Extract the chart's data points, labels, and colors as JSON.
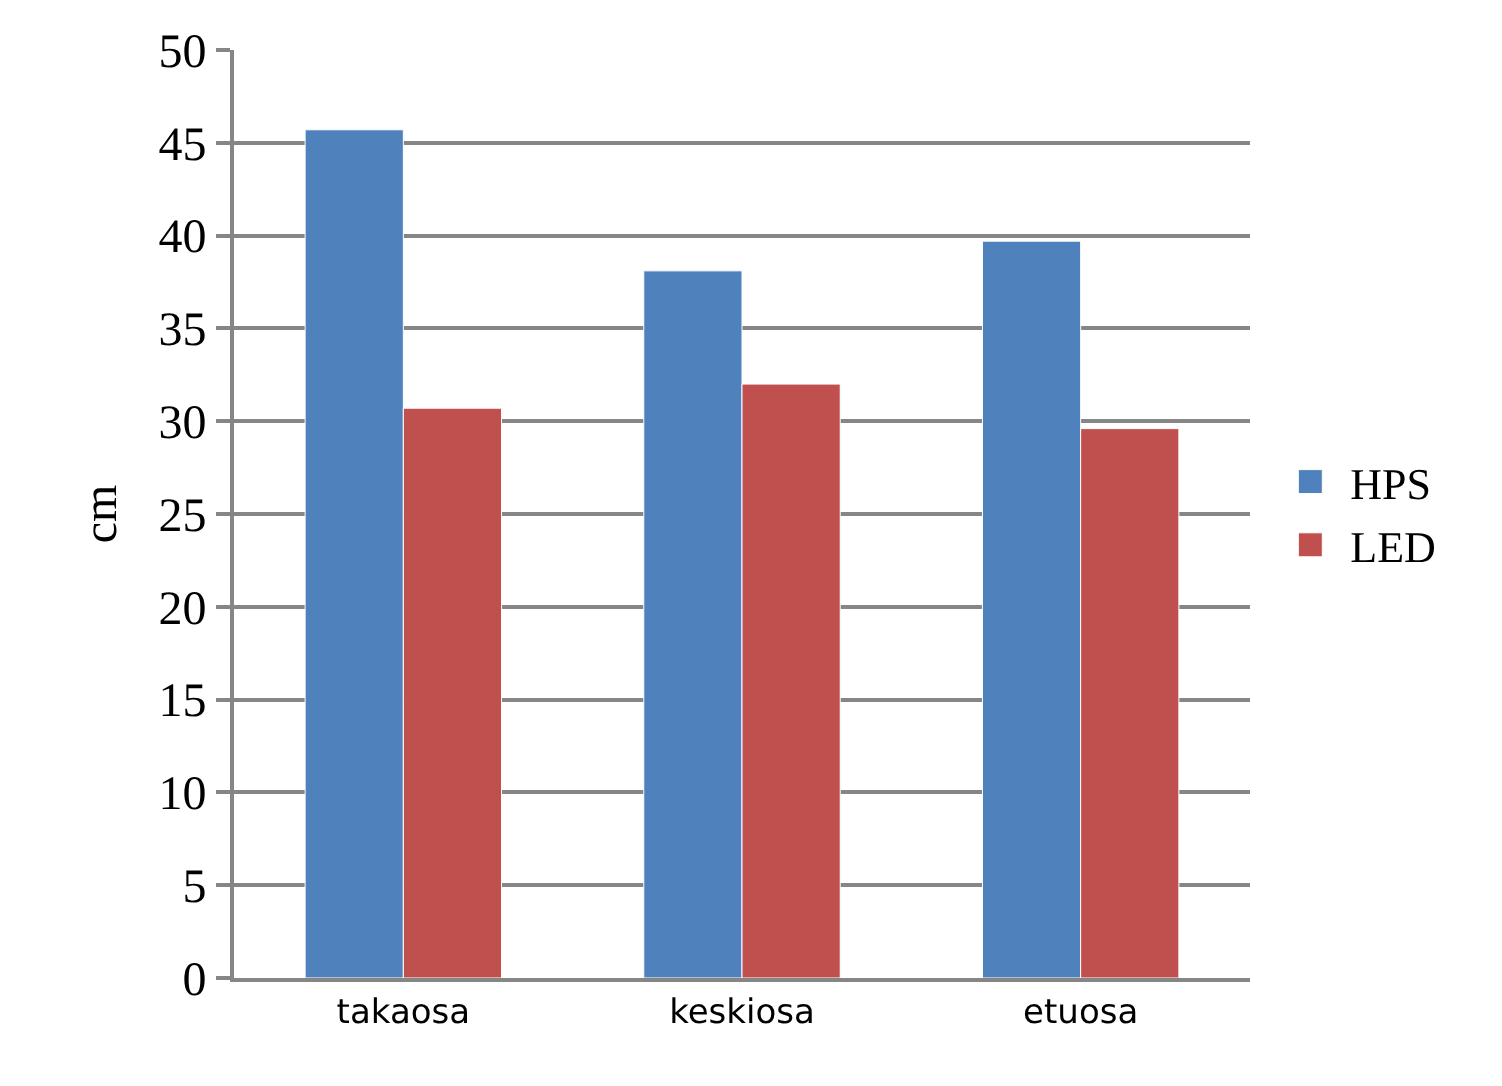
{
  "chart_data": {
    "type": "bar",
    "ylabel": "cm",
    "categories": [
      "takaosa",
      "keskiosa",
      "etuosa"
    ],
    "series": [
      {
        "name": "HPS",
        "color": "#4f81bd",
        "values": [
          45.7,
          38.1,
          39.7
        ]
      },
      {
        "name": "LED",
        "color": "#c0504d",
        "values": [
          30.7,
          32.0,
          29.6
        ]
      }
    ],
    "ylim": [
      0,
      50
    ],
    "yticks": [
      0,
      5,
      10,
      15,
      20,
      25,
      30,
      35,
      40,
      45,
      50
    ],
    "grid": "y",
    "legend": "right"
  }
}
